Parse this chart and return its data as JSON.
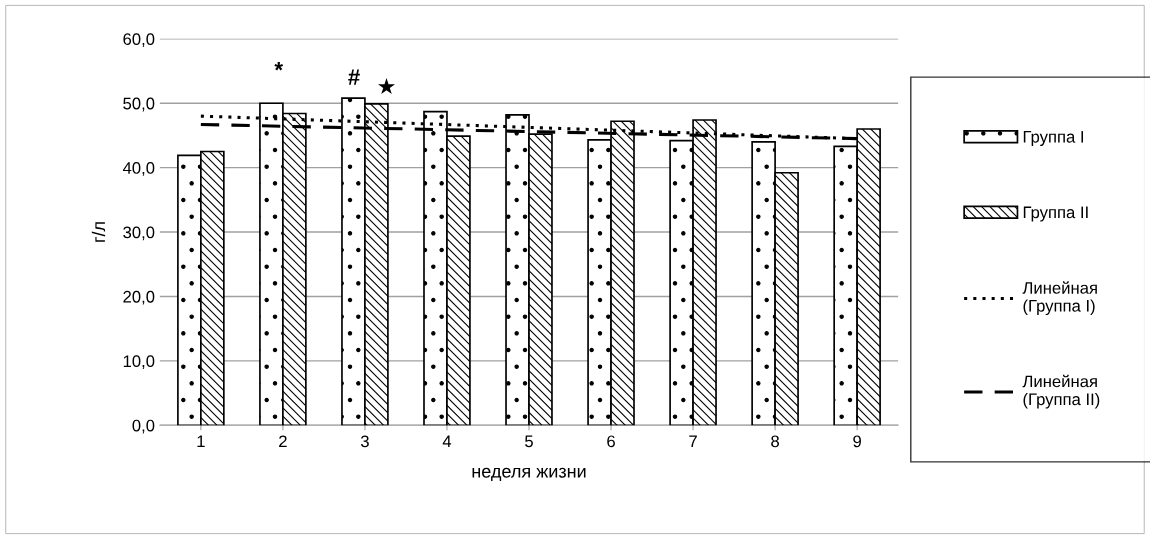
{
  "chart_data": {
    "type": "bar",
    "xlabel": "неделя жизни",
    "ylabel": "г/л",
    "categories": [
      "1",
      "2",
      "3",
      "4",
      "5",
      "6",
      "7",
      "8",
      "9"
    ],
    "series": [
      {
        "name": "Группа I",
        "color": "#000000",
        "values": [
          41.9,
          50.0,
          50.8,
          48.7,
          48.2,
          44.3,
          44.2,
          44.0,
          43.3
        ]
      },
      {
        "name": "Группа II",
        "color": "#000000",
        "values": [
          42.5,
          48.4,
          49.9,
          44.9,
          45.2,
          47.2,
          47.4,
          39.2,
          46.0
        ]
      },
      {
        "name": "Линейная (Группа I)",
        "type": "line",
        "color": "#000000",
        "line_style": "dotted",
        "x": [
          "1",
          "9"
        ],
        "values": [
          48.0,
          44.5
        ]
      },
      {
        "name": "Линейная (Группа II)",
        "type": "line",
        "color": "#000000",
        "line_style": "dashed",
        "x": [
          "1",
          "9"
        ],
        "values": [
          46.7,
          44.5
        ]
      }
    ],
    "annotations": [
      "*",
      "#",
      "★"
    ],
    "ylim": [
      0,
      60
    ],
    "yticks": [
      {
        "value": 0,
        "label": "0,0"
      },
      {
        "value": 10,
        "label": "10,0"
      },
      {
        "value": 20,
        "label": "20,0"
      },
      {
        "value": 30,
        "label": "30,0"
      },
      {
        "value": 40,
        "label": "40,0"
      },
      {
        "value": 50,
        "label": "50,0"
      },
      {
        "value": 60,
        "label": "60,0"
      }
    ],
    "grid": "y",
    "legend": "right"
  }
}
